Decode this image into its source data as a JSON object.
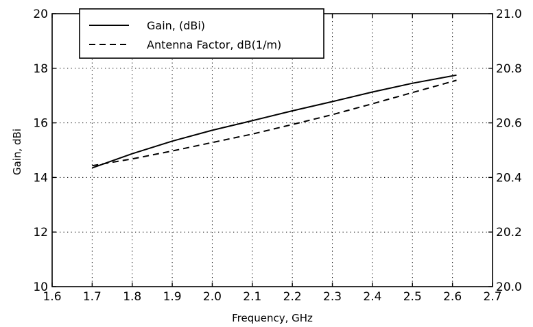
{
  "chart_data": {
    "type": "line",
    "xlabel": "Frequency, GHz",
    "ylabel": "Gain, dBi",
    "xlim": [
      1.6,
      2.7
    ],
    "ylim_left": [
      10,
      20
    ],
    "ylim_right": [
      20.0,
      21.0
    ],
    "x_ticks": [
      "1.6",
      "1.7",
      "1.8",
      "1.9",
      "2.0",
      "2.1",
      "2.2",
      "2.3",
      "2.4",
      "2.5",
      "2.6",
      "2.7"
    ],
    "y_left_ticks": [
      "10",
      "12",
      "14",
      "16",
      "18",
      "20"
    ],
    "y_right_ticks": [
      "20.0",
      "20.2",
      "20.4",
      "20.6",
      "20.8",
      "21.0"
    ],
    "grid": true,
    "legend_position": "top-left",
    "series": [
      {
        "name": "Gain, (dBi)",
        "style": "solid",
        "axis": "left",
        "x": [
          1.7,
          1.8,
          1.9,
          2.0,
          2.1,
          2.2,
          2.3,
          2.4,
          2.5,
          2.61
        ],
        "y": [
          14.35,
          14.87,
          15.33,
          15.73,
          16.08,
          16.44,
          16.78,
          17.13,
          17.45,
          17.75
        ]
      },
      {
        "name": "Antenna Factor, dB(1/m)",
        "style": "dashed",
        "axis": "right",
        "x": [
          1.7,
          1.8,
          1.9,
          2.0,
          2.1,
          2.2,
          2.3,
          2.4,
          2.5,
          2.61
        ],
        "y": [
          20.443,
          20.468,
          20.497,
          20.528,
          20.559,
          20.594,
          20.63,
          20.67,
          20.711,
          20.756
        ]
      }
    ]
  },
  "colors": {
    "line": "#000000",
    "grid": "#000000",
    "background": "#ffffff"
  }
}
